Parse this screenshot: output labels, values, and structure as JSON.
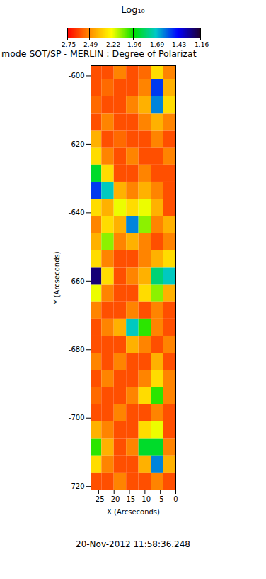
{
  "chart_data": {
    "type": "heatmap",
    "title": "mode SOT/SP - MERLIN : Degree of Polarizat",
    "x_label": "X (Arcseconds)",
    "y_label": "Y (Arcseconds)",
    "caption": "20-Nov-2012 11:58:36.248",
    "xlim": [
      -27.5,
      0
    ],
    "xticks": [
      -25,
      -20,
      -15,
      -10,
      -5,
      0
    ],
    "ylim": [
      -721,
      -597
    ],
    "yticks": [
      -720,
      -700,
      -680,
      -660,
      -640,
      -620,
      -600
    ],
    "colorbar": {
      "label": "Log₁₀",
      "range": [
        -2.75,
        -1.16
      ],
      "ticks": [
        -2.75,
        -2.49,
        -2.22,
        -1.96,
        -1.69,
        -1.43,
        -1.16
      ],
      "colors": [
        "#ff0000",
        "#ff8c00",
        "#ffff00",
        "#00e000",
        "#00c8c8",
        "#0000ff",
        "#200030"
      ]
    },
    "heatmap": {
      "x_edges": [
        -27.5,
        -24,
        -20,
        -16,
        -12,
        -8,
        -4,
        0
      ],
      "y_edges": [
        -597,
        -601,
        -606,
        -611,
        -616,
        -621,
        -626,
        -631,
        -636,
        -641,
        -646,
        -651,
        -656,
        -661,
        -666,
        -671,
        -676,
        -681,
        -686,
        -691,
        -696,
        -701,
        -706,
        -711,
        -716,
        -721
      ],
      "values": [
        [
          -2.6,
          -2.6,
          -2.5,
          -2.6,
          -2.55,
          -2.3,
          -2.5
        ],
        [
          -2.6,
          -2.55,
          -2.6,
          -2.6,
          -2.5,
          -1.5,
          -2.4
        ],
        [
          -2.55,
          -2.6,
          -2.6,
          -2.5,
          -2.4,
          -1.6,
          -2.3
        ],
        [
          -2.6,
          -2.5,
          -2.6,
          -2.6,
          -2.5,
          -2.4,
          -2.5
        ],
        [
          -2.4,
          -2.6,
          -2.55,
          -2.6,
          -2.6,
          -2.5,
          -2.6
        ],
        [
          -2.3,
          -2.5,
          -2.6,
          -2.5,
          -2.6,
          -2.6,
          -2.5
        ],
        [
          -1.9,
          -2.3,
          -2.6,
          -2.6,
          -2.5,
          -2.6,
          -2.6
        ],
        [
          -1.5,
          -1.7,
          -2.4,
          -2.5,
          -2.4,
          -2.5,
          -2.6
        ],
        [
          -2.3,
          -2.4,
          -2.2,
          -2.3,
          -2.2,
          -2.4,
          -2.6
        ],
        [
          -2.5,
          -2.3,
          -2.4,
          -1.6,
          -2.1,
          -2.5,
          -2.4
        ],
        [
          -2.4,
          -2.1,
          -2.5,
          -2.4,
          -2.5,
          -2.6,
          -2.5
        ],
        [
          -2.3,
          -2.5,
          -2.6,
          -2.6,
          -2.5,
          -2.4,
          -2.3
        ],
        [
          -1.25,
          -2.3,
          -2.6,
          -2.5,
          -2.4,
          -1.8,
          -1.7
        ],
        [
          -2.2,
          -2.5,
          -2.6,
          -2.6,
          -2.3,
          -2.1,
          -2.4
        ],
        [
          -2.5,
          -2.6,
          -2.6,
          -2.5,
          -2.6,
          -2.5,
          -2.6
        ],
        [
          -2.6,
          -2.5,
          -2.4,
          -1.7,
          -2.0,
          -2.5,
          -2.6
        ],
        [
          -2.6,
          -2.6,
          -2.6,
          -2.4,
          -2.5,
          -2.6,
          -2.5
        ],
        [
          -2.5,
          -2.6,
          -2.5,
          -2.6,
          -2.6,
          -2.4,
          -2.6
        ],
        [
          -2.6,
          -2.5,
          -2.6,
          -2.6,
          -2.5,
          -2.3,
          -2.5
        ],
        [
          -2.55,
          -2.6,
          -2.6,
          -2.5,
          -2.3,
          -2.0,
          -2.5
        ],
        [
          -2.6,
          -2.6,
          -2.5,
          -2.6,
          -2.6,
          -2.5,
          -2.6
        ],
        [
          -2.4,
          -2.5,
          -2.6,
          -2.6,
          -2.3,
          -2.2,
          -2.6
        ],
        [
          -2.0,
          -2.4,
          -2.6,
          -2.5,
          -1.9,
          -1.9,
          -2.5
        ],
        [
          -2.3,
          -2.5,
          -2.6,
          -2.6,
          -2.4,
          -1.6,
          -2.4
        ],
        [
          -2.6,
          -2.6,
          -2.5,
          -2.6,
          -2.6,
          -2.5,
          -2.6
        ]
      ]
    }
  }
}
